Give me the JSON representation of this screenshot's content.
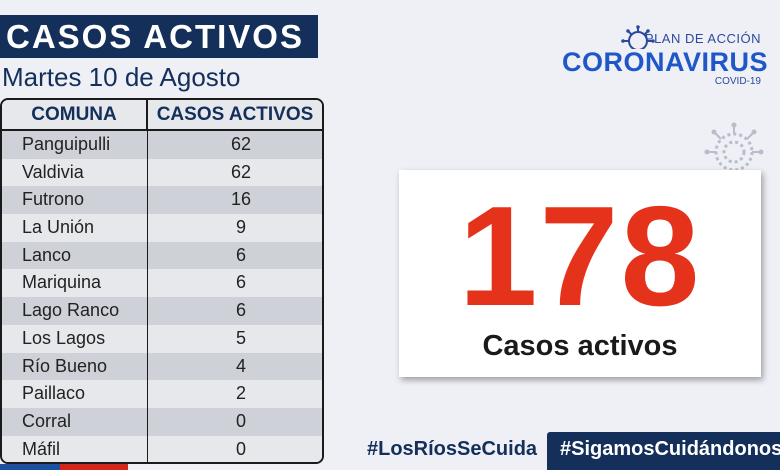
{
  "header": {
    "title": "CASOS ACTIVOS",
    "date": "Martes 10 de Agosto"
  },
  "table": {
    "headers": [
      "COMUNA",
      "CASOS ACTIVOS"
    ],
    "rows": [
      {
        "comuna": "Panguipulli",
        "casos": "62"
      },
      {
        "comuna": "Valdivia",
        "casos": "62"
      },
      {
        "comuna": "Futrono",
        "casos": "16"
      },
      {
        "comuna": "La Unión",
        "casos": "9"
      },
      {
        "comuna": "Lanco",
        "casos": "6"
      },
      {
        "comuna": "Mariquina",
        "casos": "6"
      },
      {
        "comuna": "Lago Ranco",
        "casos": "6"
      },
      {
        "comuna": "Los Lagos",
        "casos": "5"
      },
      {
        "comuna": "Río Bueno",
        "casos": "4"
      },
      {
        "comuna": "Paillaco",
        "casos": "2"
      },
      {
        "comuna": "Corral",
        "casos": "0"
      },
      {
        "comuna": "Máfil",
        "casos": "0"
      }
    ]
  },
  "logo": {
    "top": "PLAN DE ACCIÓN",
    "main": "CORONAVIRUS",
    "sub": "COVID-19",
    "icon": "virus-icon"
  },
  "total": {
    "value": "178",
    "label": "Casos activos"
  },
  "footer": {
    "hashtag_left": "#LosRíosSeCuida",
    "hashtag_right": "#SigamosCuidándonos"
  },
  "colors": {
    "navy": "#14305a",
    "red": "#e5321b",
    "brand_blue": "#1f57c9"
  }
}
